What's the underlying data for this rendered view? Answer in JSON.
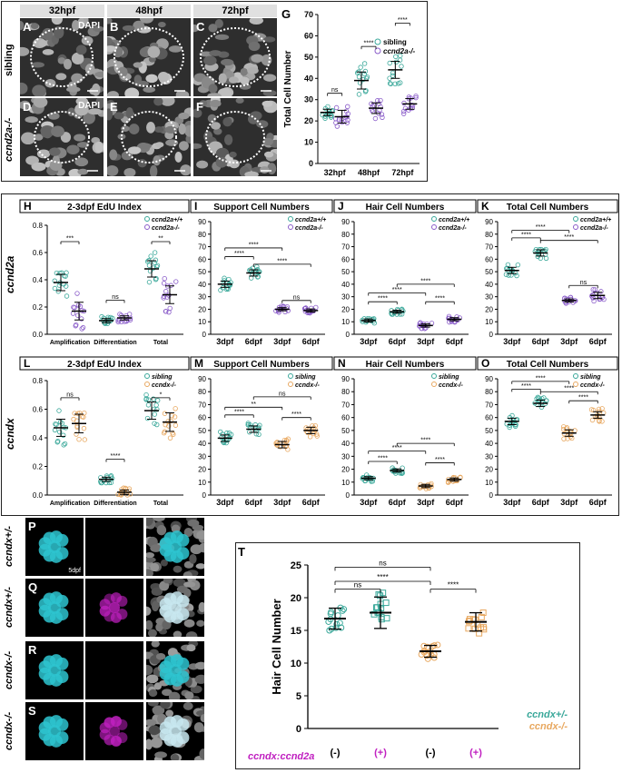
{
  "top": {
    "times": [
      "32hpf",
      "48hpf",
      "72hpf"
    ],
    "rows": [
      "sibling",
      "ccnd2a-/-"
    ],
    "panel_letters": [
      "A",
      "B",
      "C",
      "D",
      "E",
      "F"
    ],
    "dapi": "DAPI"
  },
  "G": {
    "letter": "G",
    "ylabel": "Total Cell Number",
    "categories": [
      "32hpf",
      "48hpf",
      "72hpf"
    ],
    "yticks": [
      "0",
      "10",
      "20",
      "30",
      "40",
      "50",
      "60",
      "70"
    ],
    "legend": [
      "sibling",
      "ccnd2a-/-"
    ],
    "sig": [
      "ns",
      "****",
      "****"
    ]
  },
  "row_labels": [
    "ccnd2a",
    "ccndx"
  ],
  "H": {
    "letter": "H",
    "title": "2-3dpf EdU Index",
    "yticks": [
      "0.0",
      "0.2",
      "0.4",
      "0.6",
      "0.8"
    ],
    "categories": [
      "Amplification",
      "Differentiation",
      "Total"
    ],
    "legend": [
      "ccnd2a+/+",
      "ccnd2a-/-"
    ],
    "sig": [
      "***",
      "ns",
      "**"
    ]
  },
  "I": {
    "letter": "I",
    "title": "Support Cell Numbers",
    "yticks": [
      "0",
      "10",
      "20",
      "30",
      "40",
      "50",
      "60",
      "70",
      "80",
      "90"
    ],
    "categories": [
      "3dpf",
      "6dpf",
      "3dpf",
      "6dpf"
    ],
    "legend": [
      "ccnd2a+/+",
      "ccnd2a-/-"
    ],
    "sig": [
      "****",
      "****",
      "****",
      "ns"
    ]
  },
  "J": {
    "letter": "J",
    "title": "Hair Cell Numbers",
    "yticks": [
      "0",
      "10",
      "20",
      "30",
      "40",
      "50",
      "60",
      "70",
      "80",
      "90"
    ],
    "categories": [
      "3dpf",
      "6dpf",
      "3dpf",
      "6dpf"
    ],
    "legend": [
      "ccnd2a+/+",
      "ccnd2a-/-"
    ],
    "sig": [
      "****",
      "****",
      "****",
      "****"
    ]
  },
  "K": {
    "letter": "K",
    "title": "Total Cell Numbers",
    "yticks": [
      "0",
      "10",
      "20",
      "30",
      "40",
      "50",
      "60",
      "70",
      "80",
      "90"
    ],
    "categories": [
      "3dpf",
      "6dpf",
      "3dpf",
      "6dpf"
    ],
    "legend": [
      "ccnd2a+/+",
      "ccnd2a-/-"
    ],
    "sig": [
      "****",
      "****",
      "****",
      "ns"
    ]
  },
  "L": {
    "letter": "L",
    "title": "2-3dpf EdU Index",
    "yticks": [
      "0.0",
      "0.2",
      "0.4",
      "0.6",
      "0.8"
    ],
    "categories": [
      "Amplification",
      "Differentiation",
      "Total"
    ],
    "legend": [
      "sibling",
      "ccndx-/-"
    ],
    "sig": [
      "ns",
      "****",
      "*"
    ]
  },
  "M": {
    "letter": "M",
    "title": "Support Cell Numbers",
    "yticks": [
      "0",
      "10",
      "20",
      "30",
      "40",
      "50",
      "60",
      "70",
      "80",
      "90"
    ],
    "categories": [
      "3dpf",
      "6dpf",
      "3dpf",
      "6dpf"
    ],
    "legend": [
      "sibling",
      "ccndx-/-"
    ],
    "sig": [
      "****",
      "**",
      "ns",
      "****"
    ]
  },
  "N": {
    "letter": "N",
    "title": "Hair Cell Numbers",
    "yticks": [
      "0",
      "10",
      "20",
      "30",
      "40",
      "50",
      "60",
      "70",
      "80",
      "90"
    ],
    "categories": [
      "3dpf",
      "6dpf",
      "3dpf",
      "6dpf"
    ],
    "legend": [
      "sibling",
      "ccndx-/-"
    ],
    "sig": [
      "****",
      "****",
      "****",
      "****"
    ]
  },
  "O": {
    "letter": "O",
    "title": "Total Cell Numbers",
    "yticks": [
      "0",
      "10",
      "20",
      "30",
      "40",
      "50",
      "60",
      "70",
      "80",
      "90"
    ],
    "categories": [
      "3dpf",
      "6dpf",
      "3dpf",
      "6dpf"
    ],
    "legend": [
      "sibling",
      "ccndx-/-"
    ],
    "sig": [
      "****",
      "****",
      "****",
      "****"
    ]
  },
  "fluor": {
    "letters": [
      "P",
      "Q",
      "R",
      "S"
    ],
    "genotypes": [
      "ccndx+/-",
      "ccndx+/-",
      "ccndx-/-",
      "ccndx-/-"
    ],
    "col1": "Et4:GFP",
    "col2": [
      "ccndx:ccnd2a (-)",
      "ccndx:ccnd2a (+)",
      "ccndx:ccnd2a (-)",
      "ccndx:ccnd2a (+)"
    ],
    "col3": "merged with DAPI",
    "age": "5dpf"
  },
  "T": {
    "letter": "T",
    "ylabel": "Hair Cell Number",
    "yticks": [
      "0",
      "5",
      "10",
      "15",
      "20",
      "25"
    ],
    "legend": [
      "ccndx+/-",
      "ccndx-/-"
    ],
    "construct_label": "ccndx:ccnd2a",
    "group_signs": [
      "(-)",
      "(+)",
      "(-)",
      "(+)"
    ],
    "sig": [
      "ns",
      "****",
      "****",
      "ns"
    ]
  },
  "chart_data": [
    {
      "type": "scatter",
      "panel": "G",
      "categories": [
        "32hpf",
        "48hpf",
        "72hpf"
      ],
      "ylabel": "Total Cell Number",
      "ylim": [
        0,
        70
      ],
      "series": [
        {
          "name": "sibling",
          "means": [
            24,
            39,
            44
          ]
        },
        {
          "name": "ccnd2a-/-",
          "means": [
            22,
            26,
            28
          ]
        }
      ]
    },
    {
      "type": "scatter",
      "panel": "H",
      "categories": [
        "Amplification",
        "Differentiation",
        "Total"
      ],
      "ylim": [
        0,
        0.8
      ],
      "series": [
        {
          "name": "ccnd2a+/+",
          "means": [
            0.38,
            0.1,
            0.48
          ]
        },
        {
          "name": "ccnd2a-/-",
          "means": [
            0.17,
            0.12,
            0.29
          ]
        }
      ]
    },
    {
      "type": "scatter",
      "panel": "I",
      "categories": [
        "3dpf",
        "6dpf",
        "3dpf",
        "6dpf"
      ],
      "ylim": [
        0,
        90
      ],
      "means": [
        40,
        49,
        20,
        19
      ]
    },
    {
      "type": "scatter",
      "panel": "J",
      "categories": [
        "3dpf",
        "6dpf",
        "3dpf",
        "6dpf"
      ],
      "ylim": [
        0,
        90
      ],
      "means": [
        11,
        18,
        7,
        12
      ]
    },
    {
      "type": "scatter",
      "panel": "K",
      "categories": [
        "3dpf",
        "6dpf",
        "3dpf",
        "6dpf"
      ],
      "ylim": [
        0,
        90
      ],
      "means": [
        51,
        65,
        27,
        31
      ]
    },
    {
      "type": "scatter",
      "panel": "L",
      "categories": [
        "Amplification",
        "Differentiation",
        "Total"
      ],
      "ylim": [
        0,
        0.8
      ],
      "series": [
        {
          "name": "sibling",
          "means": [
            0.47,
            0.11,
            0.59
          ]
        },
        {
          "name": "ccndx-/-",
          "means": [
            0.5,
            0.02,
            0.51
          ]
        }
      ]
    },
    {
      "type": "scatter",
      "panel": "M",
      "categories": [
        "3dpf",
        "6dpf",
        "3dpf",
        "6dpf"
      ],
      "ylim": [
        0,
        90
      ],
      "means": [
        44,
        51,
        39,
        50
      ]
    },
    {
      "type": "scatter",
      "panel": "N",
      "categories": [
        "3dpf",
        "6dpf",
        "3dpf",
        "6dpf"
      ],
      "ylim": [
        0,
        90
      ],
      "means": [
        13,
        19,
        7,
        12
      ]
    },
    {
      "type": "scatter",
      "panel": "O",
      "categories": [
        "3dpf",
        "6dpf",
        "3dpf",
        "6dpf"
      ],
      "ylim": [
        0,
        90
      ],
      "means": [
        57,
        71,
        48,
        62
      ]
    },
    {
      "type": "scatter",
      "panel": "T",
      "ylabel": "Hair Cell Number",
      "ylim": [
        0,
        25
      ],
      "means": [
        16.8,
        17.7,
        11.8,
        16.3
      ]
    }
  ]
}
